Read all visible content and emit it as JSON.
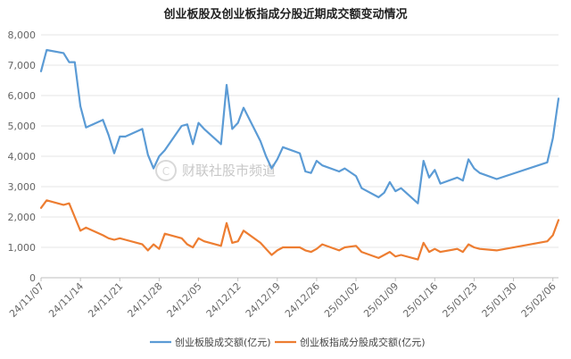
{
  "chart_data": {
    "type": "line",
    "title": "创业板股及创业板指成分股近期成交额变动情况",
    "xlabel": "",
    "ylabel": "",
    "ylim": [
      0,
      8000
    ],
    "y_ticks": [
      "0",
      "1,000",
      "2,000",
      "3,000",
      "4,000",
      "5,000",
      "6,000",
      "7,000",
      "8,000"
    ],
    "x_tick_labels": [
      "24/11/07",
      "24/11/14",
      "24/11/21",
      "24/11/28",
      "24/12/05",
      "24/12/12",
      "24/12/19",
      "24/12/26",
      "25/01/02",
      "25/01/09",
      "25/01/16",
      "25/01/23",
      "25/01/30",
      "25/02/06"
    ],
    "x": [
      "2024-11-07",
      "2024-11-08",
      "2024-11-11",
      "2024-11-12",
      "2024-11-13",
      "2024-11-14",
      "2024-11-15",
      "2024-11-18",
      "2024-11-19",
      "2024-11-20",
      "2024-11-21",
      "2024-11-22",
      "2024-11-25",
      "2024-11-26",
      "2024-11-27",
      "2024-11-28",
      "2024-11-29",
      "2024-12-02",
      "2024-12-03",
      "2024-12-04",
      "2024-12-05",
      "2024-12-06",
      "2024-12-09",
      "2024-12-10",
      "2024-12-11",
      "2024-12-12",
      "2024-12-13",
      "2024-12-16",
      "2024-12-17",
      "2024-12-18",
      "2024-12-19",
      "2024-12-20",
      "2024-12-23",
      "2024-12-24",
      "2024-12-25",
      "2024-12-26",
      "2024-12-27",
      "2024-12-30",
      "2024-12-31",
      "2025-01-02",
      "2025-01-03",
      "2025-01-06",
      "2025-01-07",
      "2025-01-08",
      "2025-01-09",
      "2025-01-10",
      "2025-01-13",
      "2025-01-14",
      "2025-01-15",
      "2025-01-16",
      "2025-01-17",
      "2025-01-20",
      "2025-01-21",
      "2025-01-22",
      "2025-01-23",
      "2025-01-24",
      "2025-01-27",
      "2025-02-05",
      "2025-02-06",
      "2025-02-07"
    ],
    "series": [
      {
        "name": "创业板股成交额(亿元)",
        "color": "#5b9bd5",
        "values": [
          6800,
          7500,
          7400,
          7100,
          7100,
          5650,
          4950,
          5200,
          4700,
          4100,
          4650,
          4650,
          4900,
          4050,
          3600,
          4000,
          4200,
          5000,
          5050,
          4400,
          5100,
          4900,
          4400,
          6350,
          4900,
          5100,
          5600,
          4500,
          4000,
          3600,
          3900,
          4300,
          4100,
          3500,
          3450,
          3850,
          3700,
          3500,
          3600,
          3350,
          2950,
          2650,
          2800,
          3150,
          2850,
          2950,
          2450,
          3850,
          3300,
          3550,
          3100,
          3300,
          3200,
          3900,
          3600,
          3450,
          3250,
          3800,
          4600,
          5900
        ],
        "x_day": [
          0,
          1,
          4,
          5,
          6,
          7,
          8,
          11,
          12,
          13,
          14,
          15,
          18,
          19,
          20,
          21,
          22,
          25,
          26,
          27,
          28,
          29,
          32,
          33,
          34,
          35,
          36,
          39,
          40,
          41,
          42,
          43,
          46,
          47,
          48,
          49,
          50,
          53,
          54,
          56,
          57,
          60,
          61,
          62,
          63,
          64,
          67,
          68,
          69,
          70,
          71,
          74,
          75,
          76,
          77,
          78,
          81,
          90,
          91,
          92
        ]
      },
      {
        "name": "创业板指成分股成交额(亿元)",
        "color": "#ed7d31",
        "values": [
          2300,
          2550,
          2400,
          2450,
          2000,
          1550,
          1650,
          1400,
          1300,
          1250,
          1300,
          1250,
          1100,
          900,
          1100,
          950,
          1450,
          1300,
          1100,
          1000,
          1300,
          1200,
          1050,
          1800,
          1150,
          1200,
          1550,
          1150,
          950,
          750,
          900,
          1000,
          1000,
          900,
          850,
          950,
          1100,
          900,
          1000,
          1050,
          850,
          650,
          750,
          850,
          700,
          750,
          600,
          1150,
          850,
          950,
          850,
          950,
          850,
          1100,
          1000,
          950,
          900,
          1200,
          1400,
          1900
        ],
        "x_day": [
          0,
          1,
          4,
          5,
          6,
          7,
          8,
          11,
          12,
          13,
          14,
          15,
          18,
          19,
          20,
          21,
          22,
          25,
          26,
          27,
          28,
          29,
          32,
          33,
          34,
          35,
          36,
          39,
          40,
          41,
          42,
          43,
          46,
          47,
          48,
          49,
          50,
          53,
          54,
          56,
          57,
          60,
          61,
          62,
          63,
          64,
          67,
          68,
          69,
          70,
          71,
          74,
          75,
          76,
          77,
          78,
          81,
          90,
          91,
          92
        ]
      }
    ],
    "grid": true,
    "legend": "bottom"
  },
  "watermark": "财联社股市频道"
}
